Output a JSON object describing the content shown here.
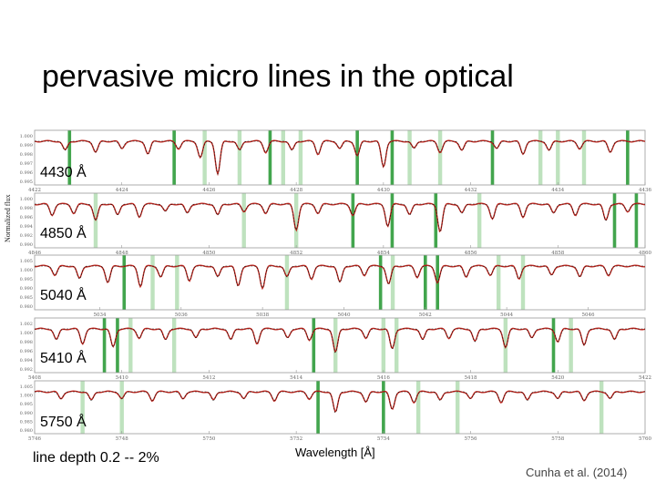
{
  "slide": {
    "title": "pervasive micro lines in the optical",
    "line_depth_note": "line depth 0.2 -- 2%",
    "x_axis_label": "Wavelength [Å]",
    "y_axis_label": "Normalized flux",
    "credit": "Cunha et al. (2014)"
  },
  "colors": {
    "spectrum": "#c0261e",
    "model": "#111111",
    "band_strong": "#2e9b3a",
    "band_light": "#a8d8a8",
    "tick_text": "#666666",
    "frame": "#999999"
  },
  "chart_data": [
    {
      "type": "line",
      "label": "4430 Å",
      "x_ticks": [
        "4422",
        "4424",
        "4426",
        "4428",
        "4430",
        "4432",
        "4434",
        "4436"
      ],
      "xlim": [
        4422,
        4436
      ],
      "y_ticks": [
        "1.000",
        "0.999",
        "0.998",
        "0.997",
        "0.996",
        "0.995"
      ],
      "absorption_lines": [
        {
          "x": 4422.7,
          "depth": 0.25
        },
        {
          "x": 4423.4,
          "depth": 0.3
        },
        {
          "x": 4424.0,
          "depth": 0.2
        },
        {
          "x": 4424.6,
          "depth": 0.35
        },
        {
          "x": 4425.3,
          "depth": 0.2
        },
        {
          "x": 4425.8,
          "depth": 0.45
        },
        {
          "x": 4426.2,
          "depth": 0.9
        },
        {
          "x": 4426.7,
          "depth": 0.25
        },
        {
          "x": 4427.3,
          "depth": 0.3
        },
        {
          "x": 4427.9,
          "depth": 0.25
        },
        {
          "x": 4428.5,
          "depth": 0.35
        },
        {
          "x": 4429.0,
          "depth": 0.2
        },
        {
          "x": 4429.4,
          "depth": 0.4
        },
        {
          "x": 4430.0,
          "depth": 0.7
        },
        {
          "x": 4430.7,
          "depth": 0.2
        },
        {
          "x": 4431.3,
          "depth": 0.3
        },
        {
          "x": 4431.8,
          "depth": 0.25
        },
        {
          "x": 4432.6,
          "depth": 0.2
        },
        {
          "x": 4433.2,
          "depth": 0.35
        },
        {
          "x": 4433.8,
          "depth": 0.25
        },
        {
          "x": 4434.5,
          "depth": 0.2
        },
        {
          "x": 4435.2,
          "depth": 0.3
        }
      ],
      "bands": [
        {
          "x": 4422.8,
          "strong": true
        },
        {
          "x": 4425.2,
          "strong": true
        },
        {
          "x": 4425.9,
          "strong": false
        },
        {
          "x": 4426.7,
          "strong": false
        },
        {
          "x": 4427.4,
          "strong": true
        },
        {
          "x": 4427.7,
          "strong": false
        },
        {
          "x": 4428.1,
          "strong": false
        },
        {
          "x": 4429.4,
          "strong": true
        },
        {
          "x": 4430.2,
          "strong": true
        },
        {
          "x": 4430.6,
          "strong": false
        },
        {
          "x": 4431.3,
          "strong": false
        },
        {
          "x": 4432.5,
          "strong": true
        },
        {
          "x": 4433.6,
          "strong": false
        },
        {
          "x": 4434.0,
          "strong": false
        },
        {
          "x": 4434.6,
          "strong": false
        },
        {
          "x": 4435.6,
          "strong": true
        }
      ]
    },
    {
      "type": "line",
      "label": "4850 Å",
      "x_ticks": [
        "4846",
        "4848",
        "4850",
        "4852",
        "4854",
        "4856",
        "4858",
        "4860"
      ],
      "xlim": [
        4846,
        4860
      ],
      "y_ticks": [
        "1.000",
        "0.998",
        "0.996",
        "0.994",
        "0.992",
        "0.990"
      ],
      "absorption_lines": [
        {
          "x": 4846.4,
          "depth": 0.3
        },
        {
          "x": 4846.9,
          "depth": 0.25
        },
        {
          "x": 4847.4,
          "depth": 0.45
        },
        {
          "x": 4847.9,
          "depth": 0.3
        },
        {
          "x": 4848.4,
          "depth": 0.35
        },
        {
          "x": 4849.0,
          "depth": 0.2
        },
        {
          "x": 4849.5,
          "depth": 0.25
        },
        {
          "x": 4850.2,
          "depth": 0.3
        },
        {
          "x": 4850.8,
          "depth": 0.2
        },
        {
          "x": 4851.3,
          "depth": 0.25
        },
        {
          "x": 4852.0,
          "depth": 0.7
        },
        {
          "x": 4852.5,
          "depth": 0.25
        },
        {
          "x": 4853.3,
          "depth": 0.3
        },
        {
          "x": 4854.1,
          "depth": 0.6
        },
        {
          "x": 4854.6,
          "depth": 0.3
        },
        {
          "x": 4855.3,
          "depth": 0.75
        },
        {
          "x": 4855.8,
          "depth": 0.25
        },
        {
          "x": 4856.5,
          "depth": 0.4
        },
        {
          "x": 4857.2,
          "depth": 0.35
        },
        {
          "x": 4857.9,
          "depth": 0.25
        },
        {
          "x": 4858.4,
          "depth": 0.3
        },
        {
          "x": 4859.1,
          "depth": 0.45
        },
        {
          "x": 4859.6,
          "depth": 0.2
        }
      ],
      "bands": [
        {
          "x": 4847.4,
          "strong": false
        },
        {
          "x": 4850.8,
          "strong": false
        },
        {
          "x": 4852.0,
          "strong": false
        },
        {
          "x": 4853.3,
          "strong": true
        },
        {
          "x": 4854.2,
          "strong": true
        },
        {
          "x": 4855.2,
          "strong": true
        },
        {
          "x": 4856.2,
          "strong": false
        },
        {
          "x": 4859.3,
          "strong": true
        },
        {
          "x": 4859.8,
          "strong": true
        }
      ]
    },
    {
      "type": "line",
      "label": "5040 Å",
      "x_ticks": [
        "5034",
        "5036",
        "5038",
        "5040",
        "5042",
        "5044",
        "5046"
      ],
      "xlim": [
        5032.4,
        5047.4
      ],
      "y_ticks": [
        "1.005",
        "1.000",
        "0.995",
        "0.990",
        "0.985",
        "0.980"
      ],
      "absorption_lines": [
        {
          "x": 5032.9,
          "depth": 0.25
        },
        {
          "x": 5033.5,
          "depth": 0.35
        },
        {
          "x": 5034.2,
          "depth": 0.45
        },
        {
          "x": 5035.0,
          "depth": 0.55
        },
        {
          "x": 5035.5,
          "depth": 0.3
        },
        {
          "x": 5036.2,
          "depth": 0.4
        },
        {
          "x": 5036.9,
          "depth": 0.3
        },
        {
          "x": 5037.4,
          "depth": 0.55
        },
        {
          "x": 5038.0,
          "depth": 0.6
        },
        {
          "x": 5038.6,
          "depth": 0.3
        },
        {
          "x": 5039.2,
          "depth": 0.35
        },
        {
          "x": 5039.9,
          "depth": 0.45
        },
        {
          "x": 5040.5,
          "depth": 0.25
        },
        {
          "x": 5041.1,
          "depth": 0.5
        },
        {
          "x": 5041.8,
          "depth": 0.3
        },
        {
          "x": 5042.3,
          "depth": 0.45
        },
        {
          "x": 5043.0,
          "depth": 0.3
        },
        {
          "x": 5043.6,
          "depth": 0.25
        },
        {
          "x": 5044.3,
          "depth": 0.35
        },
        {
          "x": 5045.1,
          "depth": 0.25
        },
        {
          "x": 5045.8,
          "depth": 0.3
        },
        {
          "x": 5046.5,
          "depth": 0.25
        }
      ],
      "bands": [
        {
          "x": 5034.6,
          "strong": true
        },
        {
          "x": 5035.3,
          "strong": false
        },
        {
          "x": 5035.9,
          "strong": false
        },
        {
          "x": 5038.6,
          "strong": false
        },
        {
          "x": 5040.9,
          "strong": true
        },
        {
          "x": 5041.2,
          "strong": false
        },
        {
          "x": 5042.0,
          "strong": true
        },
        {
          "x": 5042.3,
          "strong": true
        },
        {
          "x": 5043.8,
          "strong": false
        },
        {
          "x": 5044.4,
          "strong": false
        }
      ]
    },
    {
      "type": "line",
      "label": "5410 Å",
      "x_ticks": [
        "5408",
        "5410",
        "5412",
        "5414",
        "5416",
        "5418",
        "5420",
        "5422"
      ],
      "xlim": [
        5408,
        5422
      ],
      "y_ticks": [
        "1.002",
        "1.000",
        "0.998",
        "0.996",
        "0.994",
        "0.992"
      ],
      "absorption_lines": [
        {
          "x": 5408.5,
          "depth": 0.3
        },
        {
          "x": 5409.1,
          "depth": 0.4
        },
        {
          "x": 5409.8,
          "depth": 0.5
        },
        {
          "x": 5410.4,
          "depth": 0.25
        },
        {
          "x": 5411.0,
          "depth": 0.3
        },
        {
          "x": 5411.7,
          "depth": 0.25
        },
        {
          "x": 5412.5,
          "depth": 0.3
        },
        {
          "x": 5413.1,
          "depth": 0.4
        },
        {
          "x": 5413.8,
          "depth": 0.25
        },
        {
          "x": 5414.3,
          "depth": 0.3
        },
        {
          "x": 5414.9,
          "depth": 0.65
        },
        {
          "x": 5415.6,
          "depth": 0.25
        },
        {
          "x": 5416.2,
          "depth": 0.55
        },
        {
          "x": 5416.9,
          "depth": 0.3
        },
        {
          "x": 5417.5,
          "depth": 0.25
        },
        {
          "x": 5418.1,
          "depth": 0.35
        },
        {
          "x": 5418.8,
          "depth": 0.5
        },
        {
          "x": 5419.4,
          "depth": 0.25
        },
        {
          "x": 5420.0,
          "depth": 0.35
        },
        {
          "x": 5420.6,
          "depth": 0.45
        },
        {
          "x": 5421.3,
          "depth": 0.3
        }
      ],
      "bands": [
        {
          "x": 5409.6,
          "strong": true
        },
        {
          "x": 5409.9,
          "strong": true
        },
        {
          "x": 5410.2,
          "strong": false
        },
        {
          "x": 5411.2,
          "strong": false
        },
        {
          "x": 5414.4,
          "strong": true
        },
        {
          "x": 5414.9,
          "strong": false
        },
        {
          "x": 5416.0,
          "strong": false
        },
        {
          "x": 5416.3,
          "strong": false
        },
        {
          "x": 5418.8,
          "strong": false
        },
        {
          "x": 5419.9,
          "strong": true
        },
        {
          "x": 5420.3,
          "strong": false
        }
      ]
    },
    {
      "type": "line",
      "label": "5750 Å",
      "x_ticks": [
        "5746",
        "5748",
        "5750",
        "5752",
        "5754",
        "5756",
        "5758",
        "5760"
      ],
      "xlim": [
        5746,
        5760
      ],
      "y_ticks": [
        "1.005",
        "1.000",
        "0.995",
        "0.990",
        "0.985",
        "0.980"
      ],
      "absorption_lines": [
        {
          "x": 5746.6,
          "depth": 0.2
        },
        {
          "x": 5747.3,
          "depth": 0.25
        },
        {
          "x": 5748.0,
          "depth": 0.2
        },
        {
          "x": 5748.7,
          "depth": 0.25
        },
        {
          "x": 5749.4,
          "depth": 0.2
        },
        {
          "x": 5750.1,
          "depth": 0.25
        },
        {
          "x": 5750.8,
          "depth": 0.2
        },
        {
          "x": 5751.5,
          "depth": 0.25
        },
        {
          "x": 5752.3,
          "depth": 0.2
        },
        {
          "x": 5752.9,
          "depth": 0.6
        },
        {
          "x": 5753.6,
          "depth": 0.3
        },
        {
          "x": 5754.2,
          "depth": 0.5
        },
        {
          "x": 5754.7,
          "depth": 0.3
        },
        {
          "x": 5755.3,
          "depth": 0.25
        },
        {
          "x": 5756.0,
          "depth": 0.2
        },
        {
          "x": 5756.7,
          "depth": 0.3
        },
        {
          "x": 5757.3,
          "depth": 0.25
        },
        {
          "x": 5758.0,
          "depth": 0.2
        },
        {
          "x": 5758.6,
          "depth": 0.25
        },
        {
          "x": 5759.2,
          "depth": 0.2
        }
      ],
      "bands": [
        {
          "x": 5747.1,
          "strong": false
        },
        {
          "x": 5748.0,
          "strong": false
        },
        {
          "x": 5752.5,
          "strong": true
        },
        {
          "x": 5754.0,
          "strong": true
        },
        {
          "x": 5754.8,
          "strong": false
        },
        {
          "x": 5755.7,
          "strong": false
        },
        {
          "x": 5759.0,
          "strong": false
        }
      ]
    }
  ]
}
